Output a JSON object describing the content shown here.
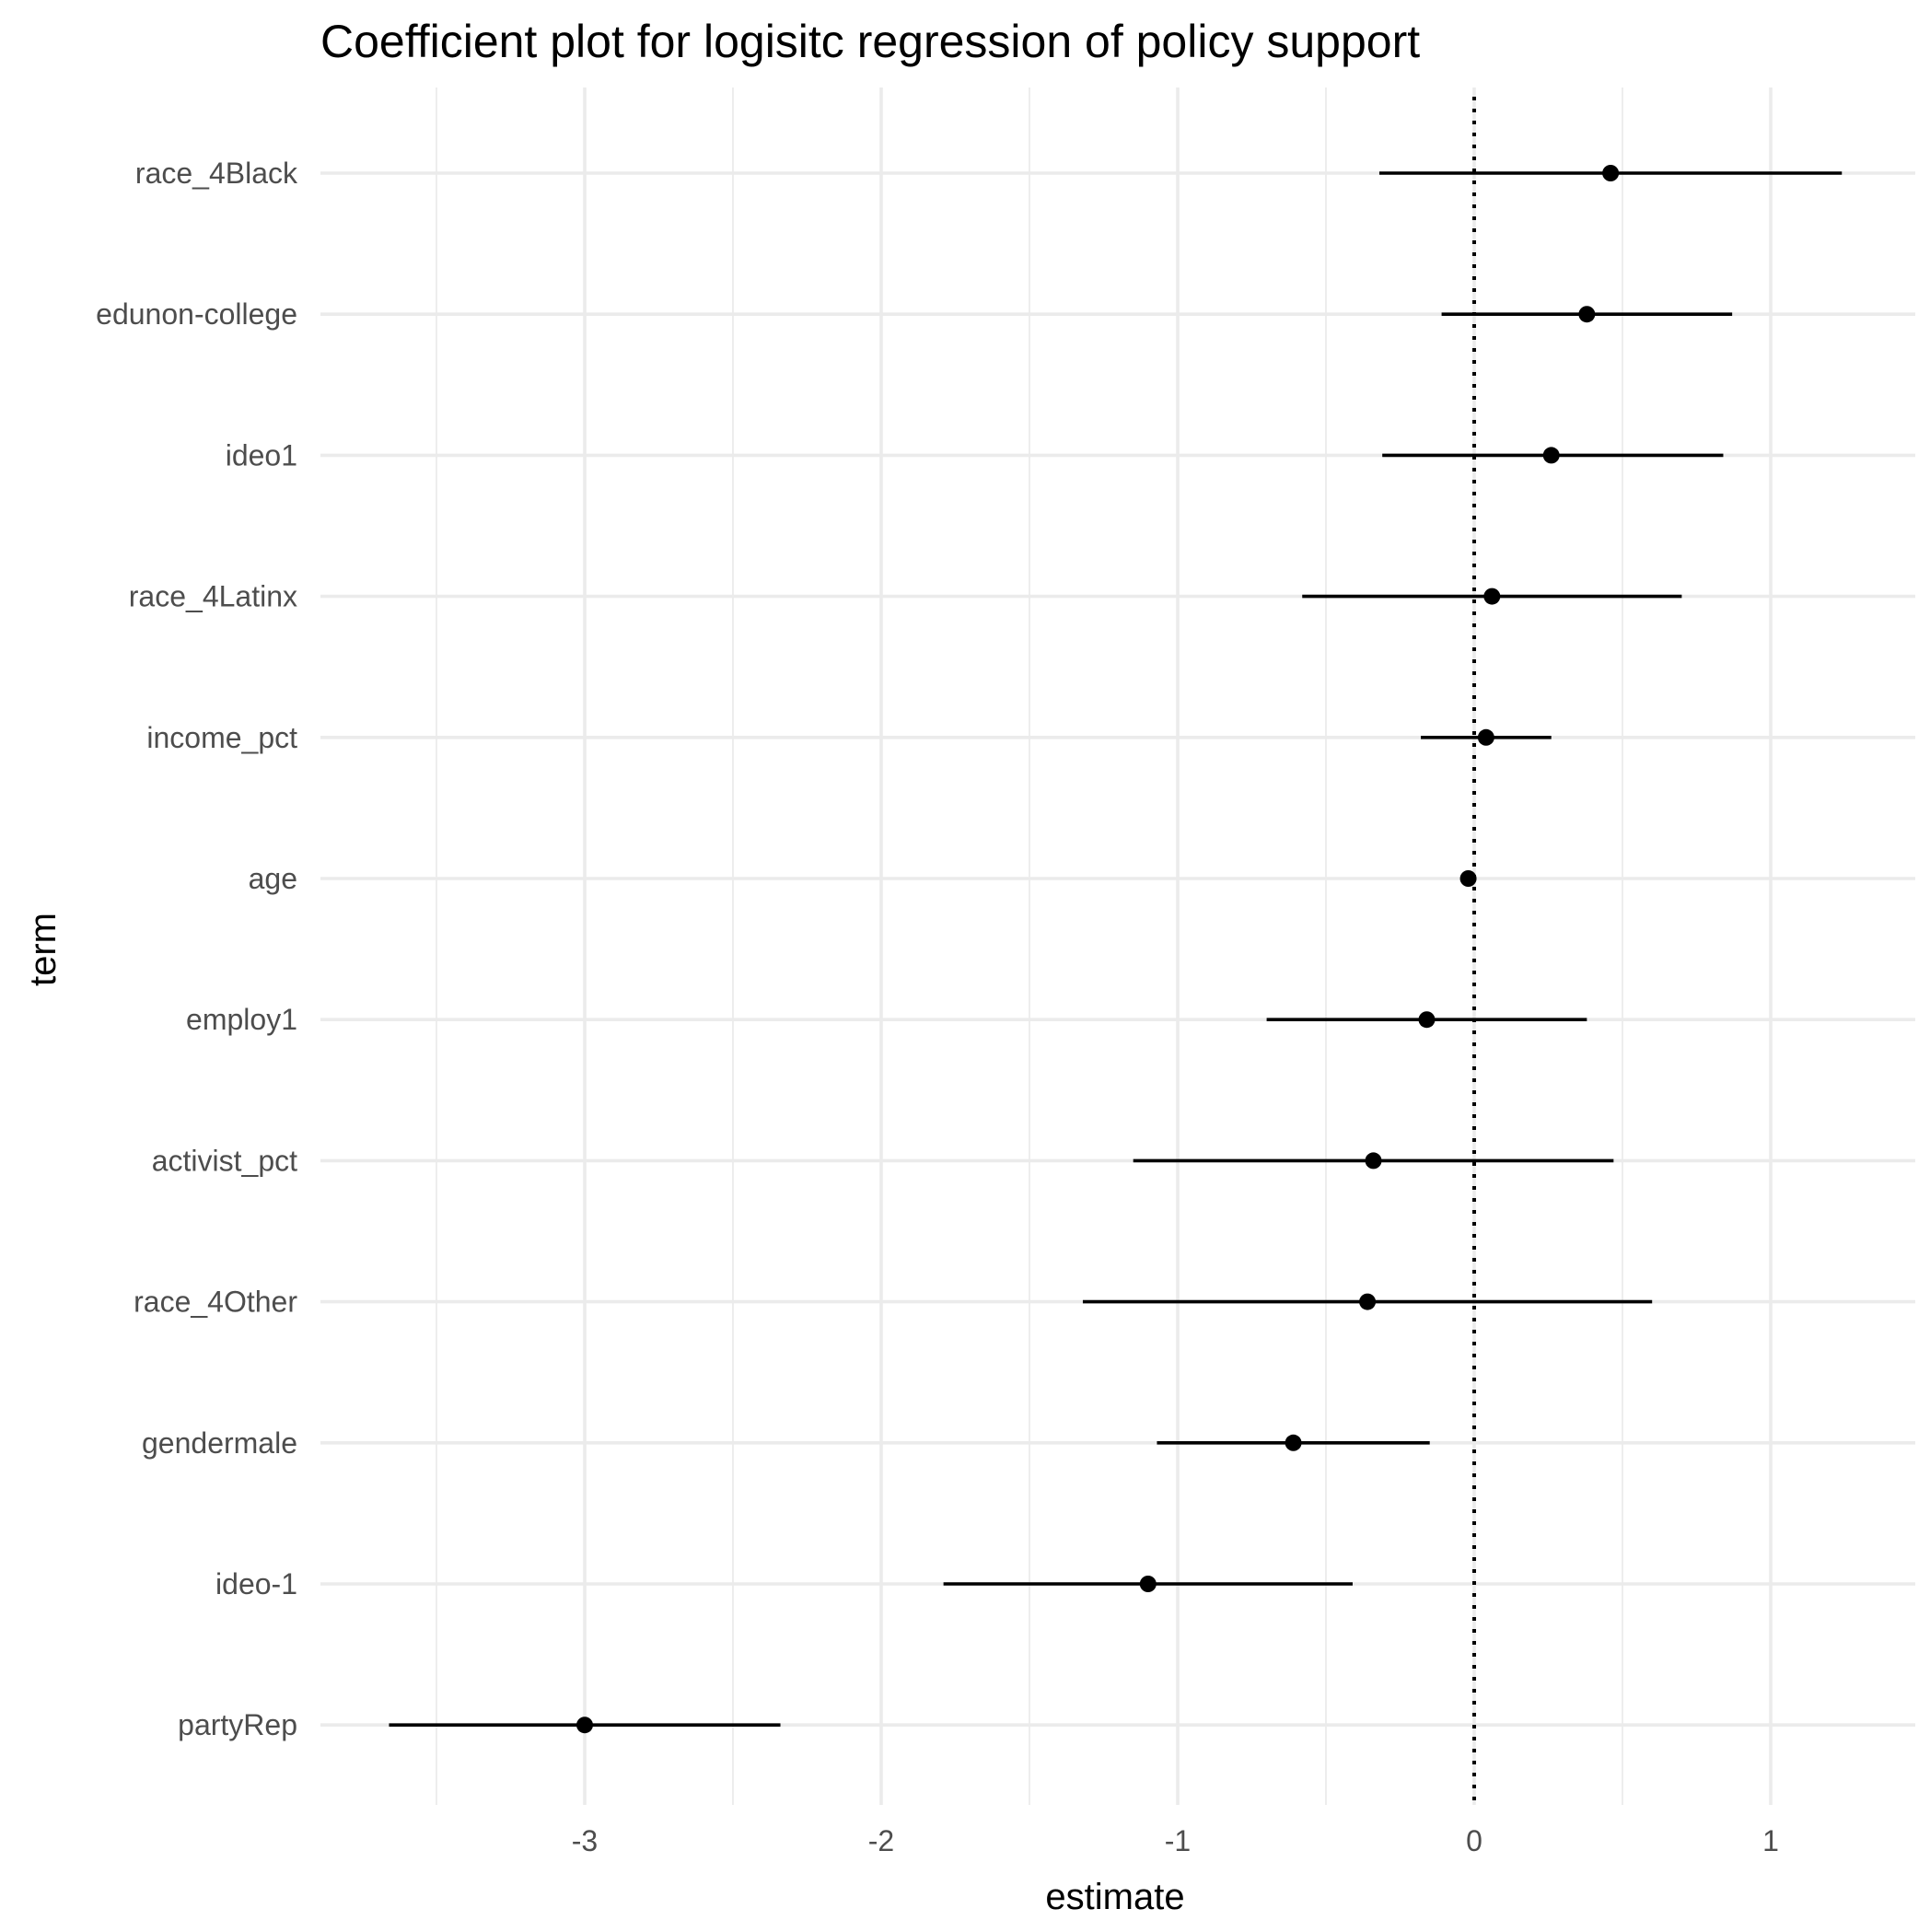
{
  "chart_data": {
    "type": "scatter",
    "title": "Coefficient plot for logisitc regression of policy support",
    "xlabel": "estimate",
    "ylabel": "term",
    "xlim": [
      -3.85,
      1.5
    ],
    "x_ticks": [
      -3,
      -2,
      -1,
      0,
      1
    ],
    "x_tick_labels": [
      "-3",
      "-2",
      "-1",
      "0",
      "1"
    ],
    "x_minor_ticks": [
      -3.5,
      -2.5,
      -1.5,
      -0.5,
      0.5
    ],
    "reference_line": {
      "x": 0,
      "style": "dotted"
    },
    "grid": true,
    "legend": "none",
    "color": "#000000",
    "terms": [
      {
        "term": "race_4Black",
        "estimate": 0.46,
        "conf_low": -0.32,
        "conf_high": 1.24
      },
      {
        "term": "edunon-college",
        "estimate": 0.38,
        "conf_low": -0.11,
        "conf_high": 0.87
      },
      {
        "term": "ideo1",
        "estimate": 0.26,
        "conf_low": -0.31,
        "conf_high": 0.84
      },
      {
        "term": "race_4Latinx",
        "estimate": 0.06,
        "conf_low": -0.58,
        "conf_high": 0.7
      },
      {
        "term": "income_pct",
        "estimate": 0.04,
        "conf_low": -0.18,
        "conf_high": 0.26
      },
      {
        "term": "age",
        "estimate": -0.02,
        "conf_low": -0.04,
        "conf_high": 0.0
      },
      {
        "term": "employ1",
        "estimate": -0.16,
        "conf_low": -0.7,
        "conf_high": 0.38
      },
      {
        "term": "activist_pct",
        "estimate": -0.34,
        "conf_low": -1.15,
        "conf_high": 0.47
      },
      {
        "term": "race_4Other",
        "estimate": -0.36,
        "conf_low": -1.32,
        "conf_high": 0.6
      },
      {
        "term": "gendermale",
        "estimate": -0.61,
        "conf_low": -1.07,
        "conf_high": -0.15
      },
      {
        "term": "ideo-1",
        "estimate": -1.1,
        "conf_low": -1.79,
        "conf_high": -0.41
      },
      {
        "term": "partyRep",
        "estimate": -3.0,
        "conf_low": -3.66,
        "conf_high": -2.34
      }
    ]
  }
}
